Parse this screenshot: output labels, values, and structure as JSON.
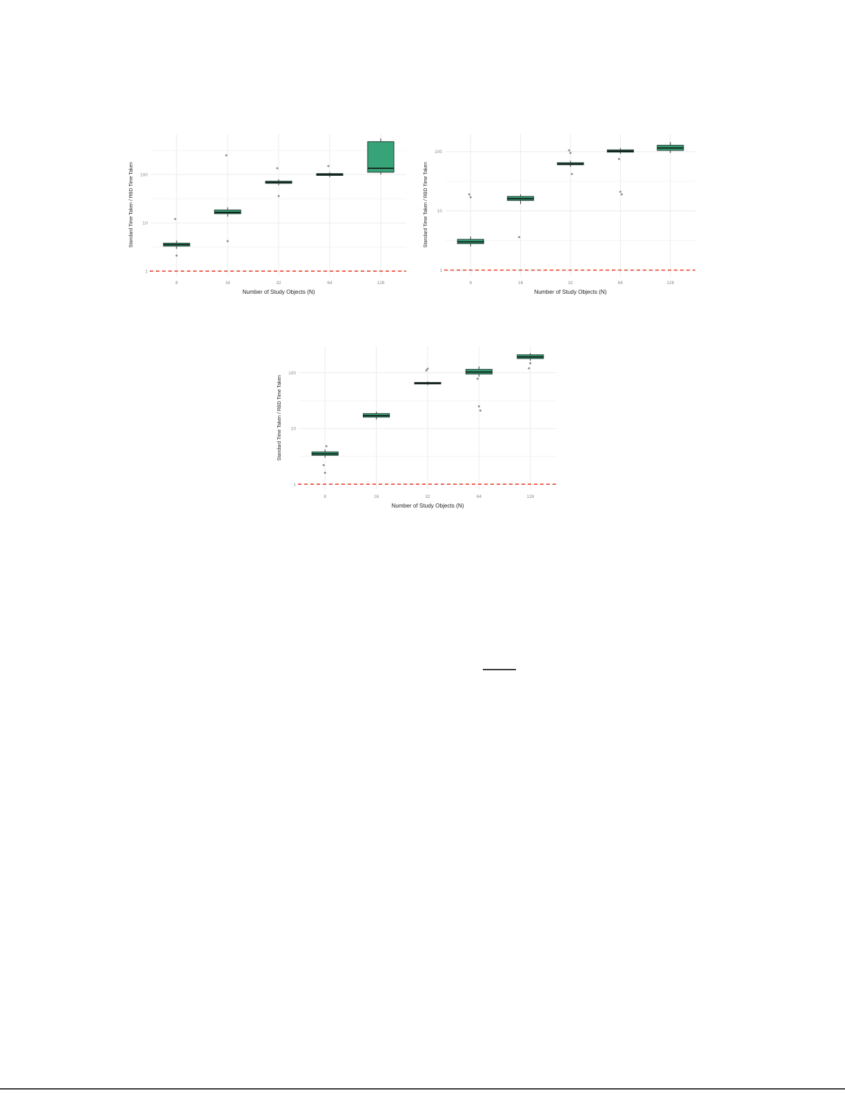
{
  "page": {
    "background": "#ffffff"
  },
  "style": {
    "box_fill": "#36a476",
    "box_stroke": "#26443a",
    "median_color": "#111111",
    "whisker_color": "#333333",
    "outlier_color": "#666666",
    "grid_color": "#ebebeb",
    "minor_grid_color": "#f4f4f4",
    "refline_color": "#e8432e",
    "axis_text_color": "#888888",
    "axis_title_color": "#222222"
  },
  "chart_data": [
    {
      "type": "box",
      "position": "top-left",
      "title": "",
      "xlabel": "Number of Study Objects (N)",
      "ylabel": "Standard Time Taken / RBD Time Taken",
      "categories": [
        "8",
        "16",
        "32",
        "64",
        "128"
      ],
      "yscale": "log",
      "ylim": [
        0.8,
        700
      ],
      "yticks": [
        1,
        10,
        100
      ],
      "ytick_labels": [
        "1",
        "10",
        "100"
      ],
      "refline": 1,
      "grid": true,
      "boxes": [
        {
          "category": "8",
          "whisker_low": 2.9,
          "q1": 3.3,
          "median": 3.55,
          "q3": 3.8,
          "whisker_high": 4.3,
          "outliers": [
            12,
            2.1
          ]
        },
        {
          "category": "16",
          "whisker_low": 13.5,
          "q1": 15.5,
          "median": 16.5,
          "q3": 18.5,
          "whisker_high": 21,
          "outliers": [
            250,
            4.2
          ]
        },
        {
          "category": "32",
          "whisker_low": 60,
          "q1": 66,
          "median": 69,
          "q3": 73,
          "whisker_high": 80,
          "outliers": [
            135,
            36
          ]
        },
        {
          "category": "64",
          "whisker_low": 88,
          "q1": 96,
          "median": 100,
          "q3": 105,
          "whisker_high": 112,
          "outliers": [
            150
          ]
        },
        {
          "category": "128",
          "whisker_low": 100,
          "q1": 112,
          "median": 135,
          "q3": 480,
          "whisker_high": 560,
          "outliers": []
        }
      ]
    },
    {
      "type": "box",
      "position": "top-right",
      "title": "",
      "xlabel": "Number of Study Objects (N)",
      "ylabel": "Standard Time Taken / RBD Time Taken",
      "categories": [
        "8",
        "16",
        "32",
        "64",
        "128"
      ],
      "yscale": "log",
      "ylim": [
        0.8,
        200
      ],
      "yticks": [
        1,
        10,
        100
      ],
      "ytick_labels": [
        "1",
        "10",
        "100"
      ],
      "refline": 1,
      "grid": true,
      "boxes": [
        {
          "category": "8",
          "whisker_low": 2.5,
          "q1": 2.8,
          "median": 3.0,
          "q3": 3.3,
          "whisker_high": 3.7,
          "outliers": [
            19,
            17
          ]
        },
        {
          "category": "16",
          "whisker_low": 13,
          "q1": 15,
          "median": 16,
          "q3": 17.5,
          "whisker_high": 19,
          "outliers": [
            3.6
          ]
        },
        {
          "category": "32",
          "whisker_low": 55,
          "q1": 60,
          "median": 62,
          "q3": 65,
          "whisker_high": 70,
          "outliers": [
            105,
            95,
            42
          ]
        },
        {
          "category": "64",
          "whisker_low": 92,
          "q1": 98,
          "median": 102,
          "q3": 107,
          "whisker_high": 115,
          "outliers": [
            75,
            21,
            19
          ]
        },
        {
          "category": "128",
          "whisker_low": 95,
          "q1": 105,
          "median": 115,
          "q3": 128,
          "whisker_high": 145,
          "outliers": []
        }
      ]
    },
    {
      "type": "box",
      "position": "bottom-center",
      "title": "",
      "xlabel": "Number of Study Objects (N)",
      "ylabel": "Standard Time Taken / RBD Time Taken",
      "categories": [
        "8",
        "16",
        "32",
        "64",
        "128"
      ],
      "yscale": "log",
      "ylim": [
        0.8,
        300
      ],
      "yticks": [
        1,
        10,
        100
      ],
      "ytick_labels": [
        "1",
        "10",
        "100"
      ],
      "refline": 1,
      "grid": true,
      "boxes": [
        {
          "category": "8",
          "whisker_low": 3.0,
          "q1": 3.3,
          "median": 3.5,
          "q3": 3.8,
          "whisker_high": 4.2,
          "outliers": [
            2.2,
            1.6,
            4.8
          ]
        },
        {
          "category": "16",
          "whisker_low": 14.5,
          "q1": 16,
          "median": 17,
          "q3": 18.5,
          "whisker_high": 20,
          "outliers": []
        },
        {
          "category": "32",
          "whisker_low": 60,
          "q1": 63,
          "median": 65,
          "q3": 67,
          "whisker_high": 70,
          "outliers": [
            110,
            118
          ]
        },
        {
          "category": "64",
          "whisker_low": 85,
          "q1": 95,
          "median": 103,
          "q3": 115,
          "whisker_high": 130,
          "outliers": [
            78,
            25,
            21
          ]
        },
        {
          "category": "128",
          "whisker_low": 165,
          "q1": 180,
          "median": 192,
          "q3": 210,
          "whisker_high": 225,
          "outliers": [
            120,
            148
          ]
        }
      ]
    }
  ]
}
